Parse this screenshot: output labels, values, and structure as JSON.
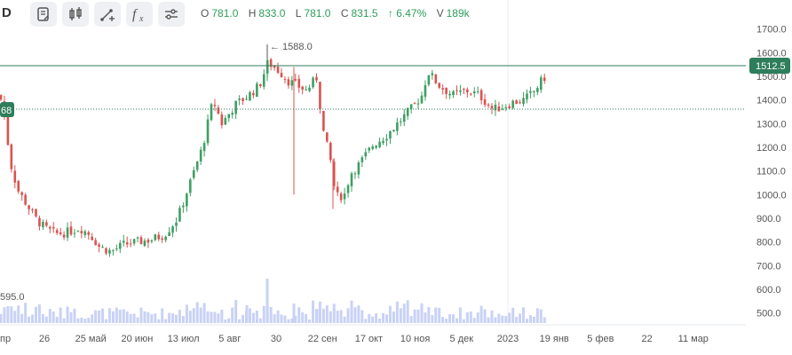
{
  "toolbar": {
    "interval_label": "D",
    "buttons": [
      {
        "name": "indicators-icon"
      },
      {
        "name": "candles-icon"
      },
      {
        "name": "draw-tools-icon"
      },
      {
        "name": "fx-icon"
      },
      {
        "name": "settings-icon"
      }
    ]
  },
  "ohlc": {
    "o_label": "O",
    "o": "781.0",
    "h_label": "H",
    "h": "833.0",
    "l_label": "L",
    "l": "781.0",
    "c_label": "C",
    "c": "831.5",
    "change": "↑ 6.47%",
    "v_label": "V",
    "v": "189k"
  },
  "price_axis": {
    "ticks": [
      "1700.0",
      "1600.0",
      "1500.0",
      "1400.0",
      "1300.0",
      "1200.0",
      "1100.0",
      "1000.0",
      "900.0",
      "800.0",
      "700.0",
      "600.0",
      "500.0"
    ]
  },
  "markers": {
    "max_label": "← 1588.0",
    "current_price": "1512.5",
    "left_badge": "68",
    "volume_label": "595.0"
  },
  "time_axis": {
    "ticks": [
      "пр",
      "26",
      "25 май",
      "20 июн",
      "13 июл",
      "5 авг",
      "30",
      "22 сен",
      "17 окт",
      "10 ноя",
      "5 дек",
      "2023",
      "19 янв",
      "5 фев",
      "22",
      "11 мар"
    ]
  },
  "colors": {
    "up": "#3f9f63",
    "down": "#d9534f",
    "current_line": "#2e7d5b",
    "volume": "#c9d2f5",
    "badge": "#2e7d5b"
  },
  "chart_data": {
    "type": "candlestick",
    "ylim": [
      480,
      1740
    ],
    "anchors": [
      [
        0,
        1420
      ],
      [
        5,
        1330
      ],
      [
        12,
        1130
      ],
      [
        20,
        1020
      ],
      [
        30,
        960
      ],
      [
        40,
        900
      ],
      [
        50,
        860
      ],
      [
        62,
        835
      ],
      [
        75,
        840
      ],
      [
        90,
        860
      ],
      [
        102,
        830
      ],
      [
        112,
        780
      ],
      [
        125,
        760
      ],
      [
        140,
        790
      ],
      [
        155,
        800
      ],
      [
        170,
        810
      ],
      [
        185,
        830
      ],
      [
        200,
        900
      ],
      [
        215,
        1060
      ],
      [
        228,
        1200
      ],
      [
        240,
        1400
      ],
      [
        250,
        1300
      ],
      [
        265,
        1380
      ],
      [
        280,
        1420
      ],
      [
        292,
        1460
      ],
      [
        302,
        1560
      ],
      [
        315,
        1520
      ],
      [
        325,
        1480
      ],
      [
        335,
        1460
      ],
      [
        345,
        1440
      ],
      [
        358,
        1500
      ],
      [
        362,
        1300
      ],
      [
        372,
        1150
      ],
      [
        378,
        990
      ],
      [
        388,
        1000
      ],
      [
        395,
        1090
      ],
      [
        405,
        1130
      ],
      [
        420,
        1210
      ],
      [
        435,
        1250
      ],
      [
        450,
        1310
      ],
      [
        465,
        1370
      ],
      [
        475,
        1420
      ],
      [
        482,
        1520
      ],
      [
        495,
        1460
      ],
      [
        510,
        1420
      ],
      [
        525,
        1440
      ],
      [
        540,
        1420
      ],
      [
        555,
        1360
      ],
      [
        565,
        1370
      ],
      [
        578,
        1390
      ],
      [
        590,
        1400
      ],
      [
        600,
        1430
      ],
      [
        610,
        1480
      ],
      [
        617,
        1512
      ]
    ]
  }
}
